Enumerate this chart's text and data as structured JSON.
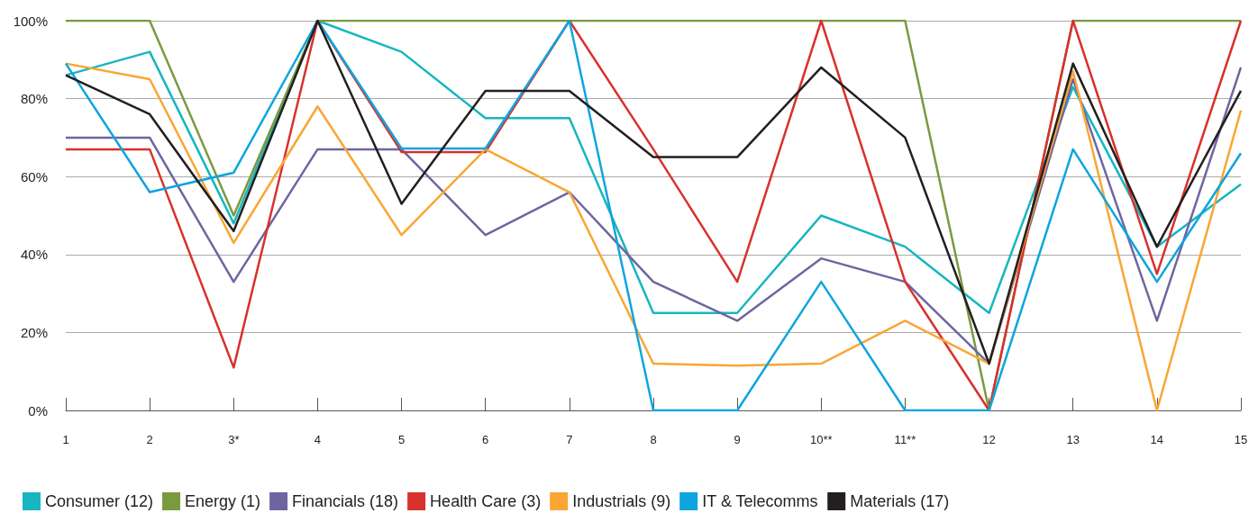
{
  "chart_data": {
    "type": "line",
    "categories": [
      "1",
      "2",
      "3*",
      "4",
      "5",
      "6",
      "7",
      "8",
      "9",
      "10**",
      "11**",
      "12",
      "13",
      "14",
      "15"
    ],
    "series": [
      {
        "name": "Consumer (12)",
        "color": "#17b6c0",
        "values": [
          86,
          92,
          48,
          100,
          92,
          75,
          75,
          25,
          25,
          50,
          42,
          25,
          83,
          42,
          58
        ]
      },
      {
        "name": "Energy (1)",
        "color": "#7a9a3f",
        "values": [
          100,
          100,
          50,
          100,
          100,
          100,
          100,
          100,
          100,
          100,
          100,
          0,
          100,
          100,
          100
        ]
      },
      {
        "name": "Financials (18)",
        "color": "#6e65a0",
        "values": [
          70,
          70,
          33,
          67,
          67,
          45,
          56,
          33,
          23,
          39,
          33,
          12,
          85,
          23,
          88
        ]
      },
      {
        "name": "Health Care (3)",
        "color": "#d9312d",
        "values": [
          67,
          67,
          11,
          100,
          66.3,
          66.3,
          100,
          67,
          33,
          100,
          33,
          0,
          100,
          35,
          100
        ]
      },
      {
        "name": "Industrials (9)",
        "color": "#f9a634",
        "values": [
          89,
          85,
          43,
          78,
          45,
          67,
          56,
          12,
          11.5,
          12,
          23,
          12,
          87,
          0,
          77
        ]
      },
      {
        "name": "IT & Telecomms",
        "color": "#0ea5de",
        "values": [
          89,
          56,
          61,
          100,
          67.2,
          67.2,
          100,
          0,
          0,
          33,
          0,
          0,
          67,
          33,
          66
        ]
      },
      {
        "name": "Materials (17)",
        "color": "#231f20",
        "values": [
          86,
          76,
          46,
          100,
          53,
          82,
          82,
          65,
          65,
          88,
          70,
          12,
          89,
          42,
          82
        ]
      }
    ],
    "ylim": [
      0,
      100
    ],
    "yticks": [
      {
        "value": 0,
        "label": "0%"
      },
      {
        "value": 20,
        "label": "20%"
      },
      {
        "value": 40,
        "label": "40%"
      },
      {
        "value": 60,
        "label": "60%"
      },
      {
        "value": 80,
        "label": "80%"
      },
      {
        "value": 100,
        "label": "100%"
      }
    ],
    "grid": "y",
    "legend": "bottom left",
    "marker": "none",
    "line_style": "solid"
  }
}
